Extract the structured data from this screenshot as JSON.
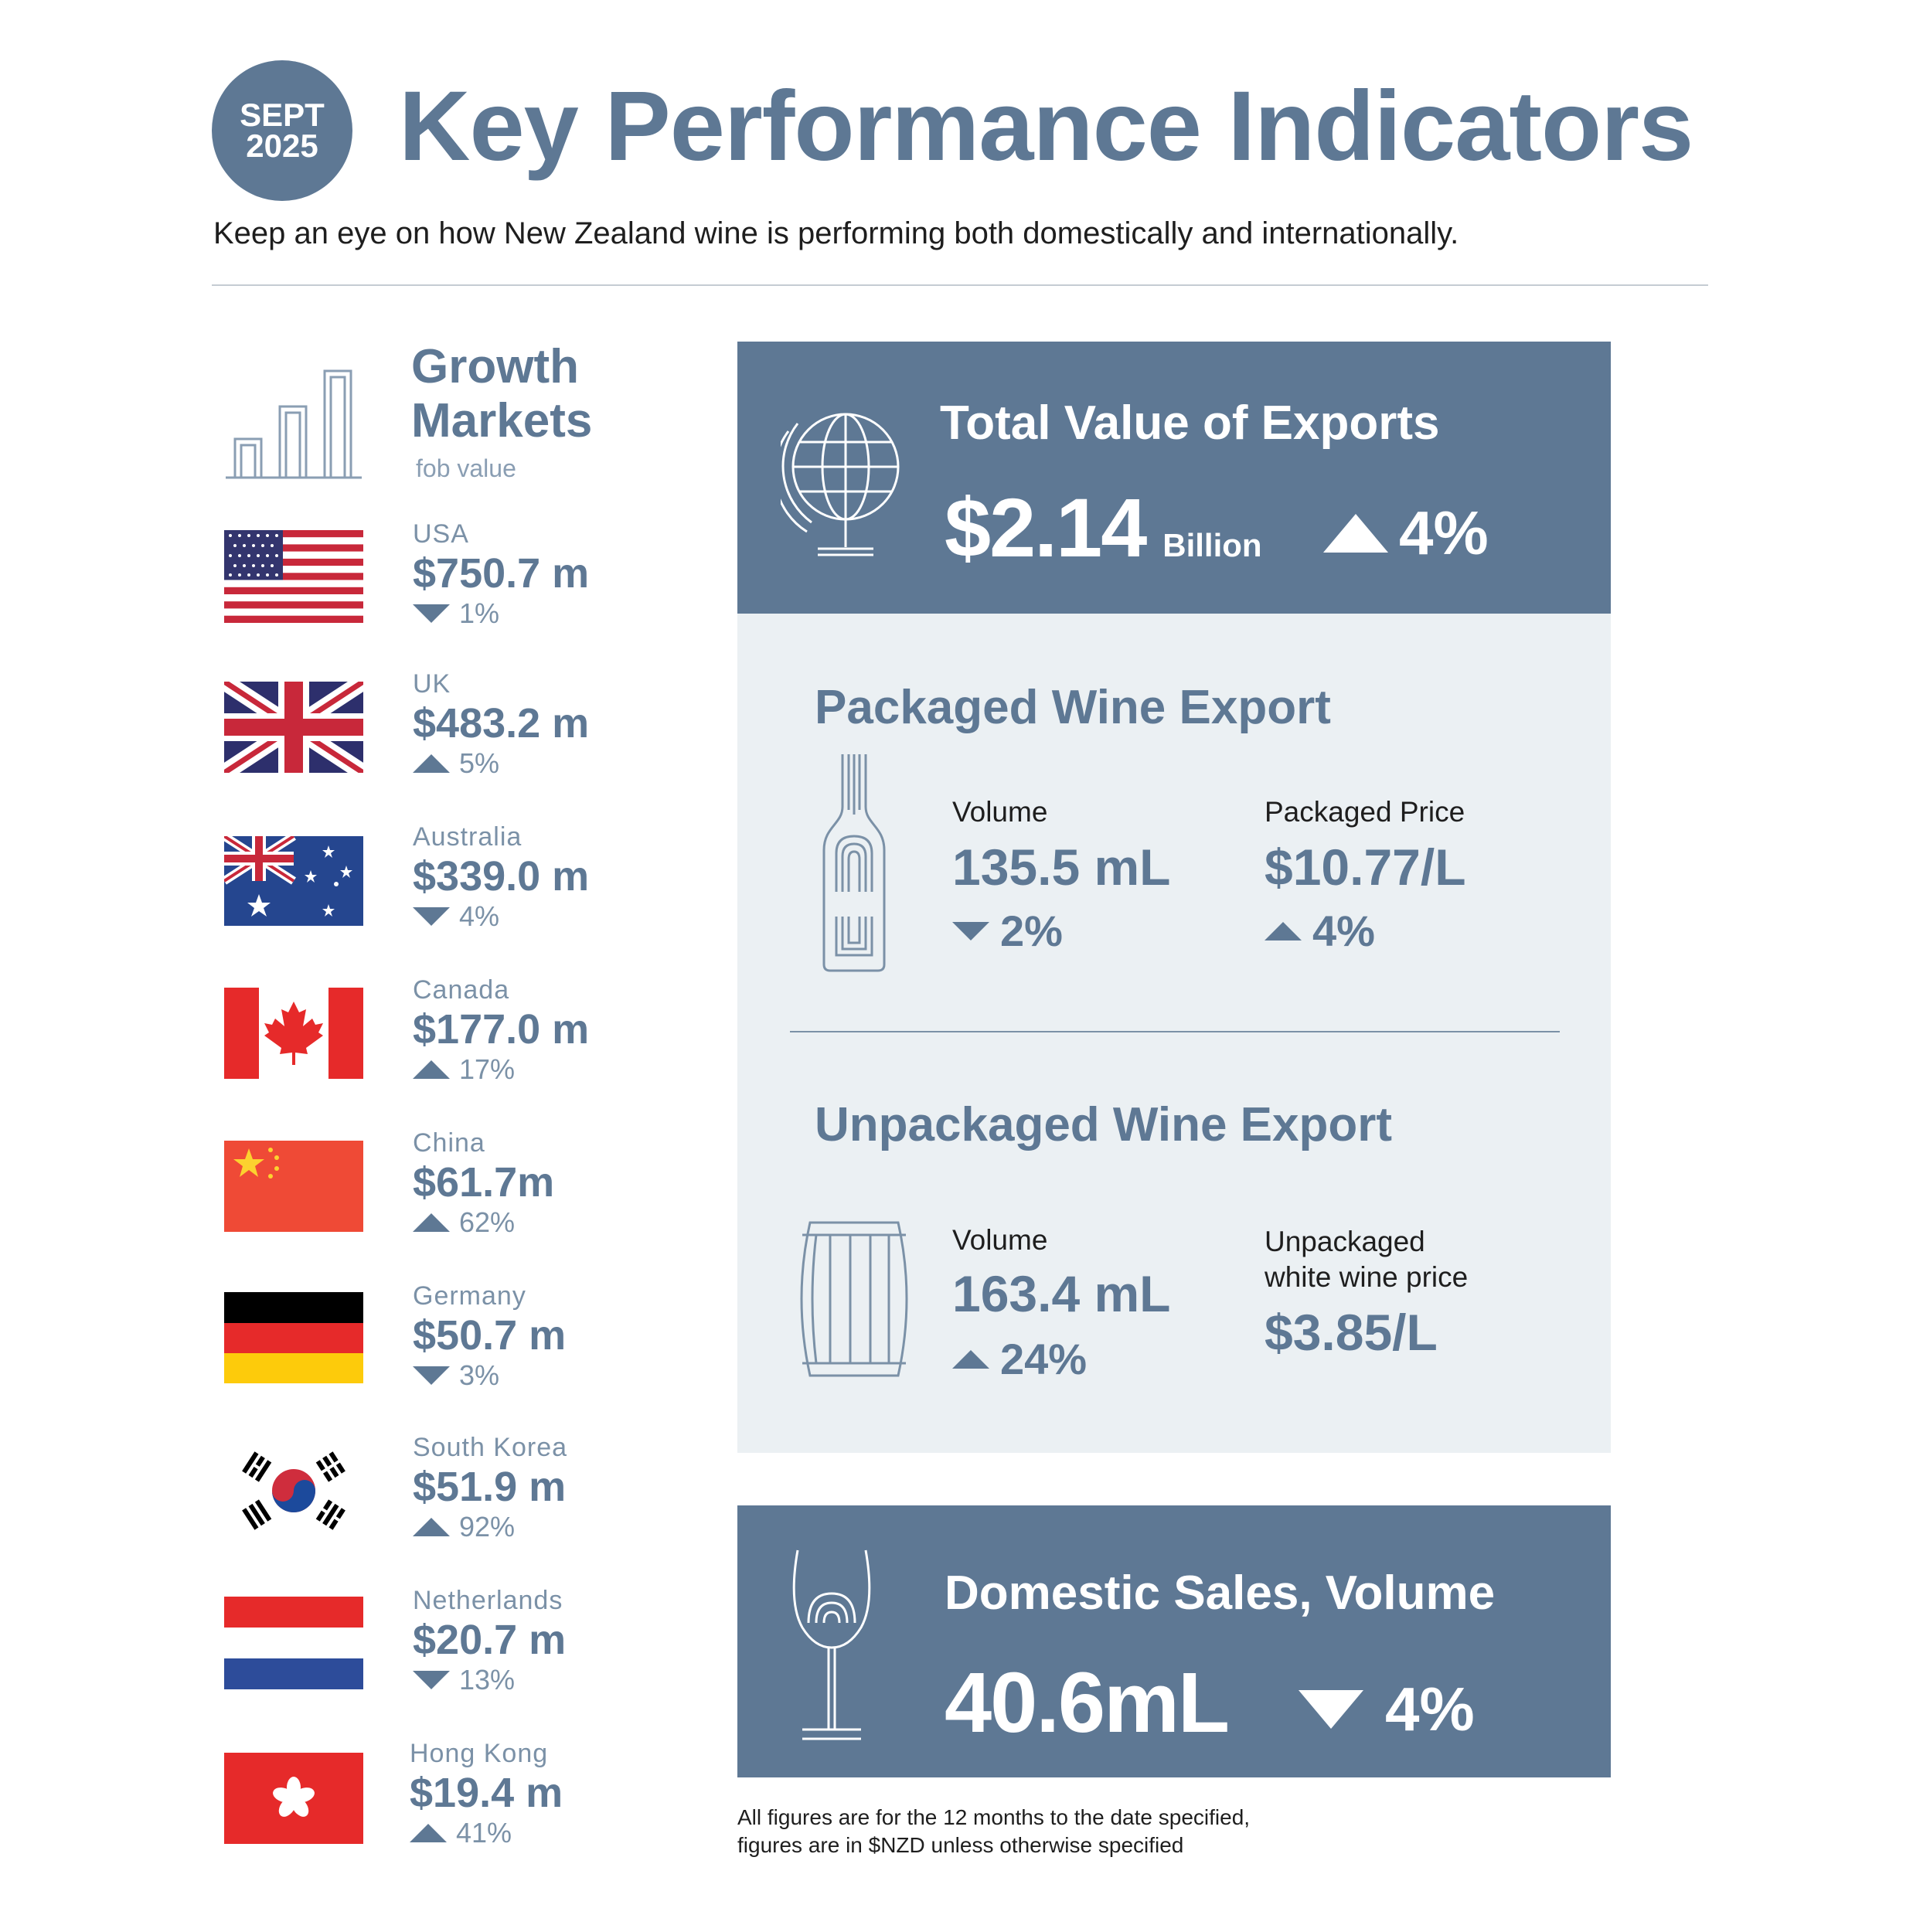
{
  "header": {
    "badge_month": "SEPT",
    "badge_year": "2025",
    "title": "Key Performance Indicators",
    "subtitle": "Keep an eye on how New Zealand wine is performing both domestically and internationally."
  },
  "growth_markets": {
    "title_line1": "Growth",
    "title_line2": "Markets",
    "subtitle": "fob value",
    "markets": [
      {
        "name": "USA",
        "value": "$750.7 m",
        "direction": "down",
        "change": "1%"
      },
      {
        "name": "UK",
        "value": "$483.2 m",
        "direction": "up",
        "change": "5%"
      },
      {
        "name": "Australia",
        "value": "$339.0 m",
        "direction": "down",
        "change": "4%"
      },
      {
        "name": "Canada",
        "value": "$177.0 m",
        "direction": "up",
        "change": "17%"
      },
      {
        "name": "China",
        "value": "$61.7m",
        "direction": "up",
        "change": "62%"
      },
      {
        "name": "Germany",
        "value": "$50.7 m",
        "direction": "down",
        "change": "3%"
      },
      {
        "name": "South Korea",
        "value": "$51.9 m",
        "direction": "up",
        "change": "92%"
      },
      {
        "name": "Netherlands",
        "value": "$20.7 m",
        "direction": "down",
        "change": "13%"
      },
      {
        "name": "Hong Kong",
        "value": "$19.4 m",
        "direction": "up",
        "change": "41%"
      }
    ]
  },
  "exports": {
    "title": "Total Value of Exports",
    "value": "$2.14",
    "unit": "Billion",
    "direction": "up",
    "change": "4%"
  },
  "packaged": {
    "title": "Packaged Wine Export",
    "volume_label": "Volume",
    "volume_value": "135.5 mL",
    "volume_direction": "down",
    "volume_change": "2%",
    "price_label": "Packaged Price",
    "price_value": "$10.77/L",
    "price_direction": "up",
    "price_change": "4%"
  },
  "unpackaged": {
    "title": "Unpackaged Wine Export",
    "volume_label": "Volume",
    "volume_value": "163.4 mL",
    "volume_direction": "up",
    "volume_change": "24%",
    "price_label_line1": "Unpackaged",
    "price_label_line2": "white wine price",
    "price_value": "$3.85/L"
  },
  "domestic": {
    "title": "Domestic Sales, Volume",
    "value": "40.6mL",
    "direction": "down",
    "change": "4%"
  },
  "footnote": {
    "line1": "All figures are for the 12 months to the date specified,",
    "line2": "figures are in $NZD unless otherwise specified"
  },
  "colors": {
    "brand": "#5e7894",
    "panel_light": "#ebf0f3",
    "text_dark": "#1e1e1e"
  }
}
